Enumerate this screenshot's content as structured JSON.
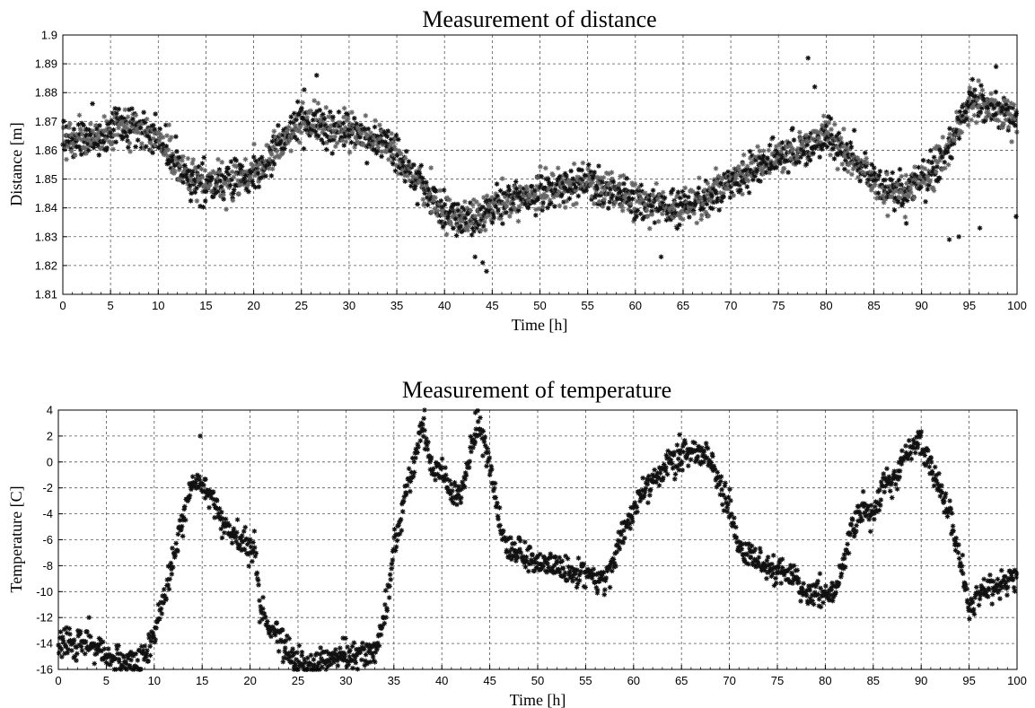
{
  "chart_data": [
    {
      "type": "scatter",
      "title": "Measurement of distance",
      "xlabel": "Time [h]",
      "ylabel": "Distance [m]",
      "xlim": [
        0,
        100
      ],
      "ylim": [
        1.81,
        1.9
      ],
      "xticks": [
        "0",
        "5",
        "10",
        "15",
        "20",
        "25",
        "30",
        "35",
        "40",
        "45",
        "50",
        "55",
        "60",
        "65",
        "70",
        "75",
        "80",
        "85",
        "90",
        "95",
        "100"
      ],
      "yticks": [
        "1.81",
        "1.82",
        "1.83",
        "1.84",
        "1.85",
        "1.86",
        "1.87",
        "1.88",
        "1.89",
        "1.9"
      ],
      "grid": true,
      "marker": "asterisk",
      "colors": [
        "#111111",
        "#666666"
      ],
      "trend": {
        "x": [
          0,
          3,
          6,
          8,
          10,
          12,
          14,
          17,
          20,
          22,
          25,
          28,
          31,
          34,
          37,
          40,
          43,
          45,
          48,
          52,
          55,
          58,
          61,
          64,
          67,
          70,
          73,
          75,
          78,
          80,
          83,
          86,
          88,
          91,
          93,
          95,
          97,
          100
        ],
        "y": [
          1.863,
          1.864,
          1.868,
          1.868,
          1.864,
          1.855,
          1.848,
          1.849,
          1.852,
          1.86,
          1.87,
          1.868,
          1.866,
          1.862,
          1.851,
          1.838,
          1.835,
          1.84,
          1.844,
          1.847,
          1.849,
          1.845,
          1.842,
          1.84,
          1.842,
          1.848,
          1.855,
          1.858,
          1.861,
          1.865,
          1.856,
          1.846,
          1.846,
          1.852,
          1.862,
          1.878,
          1.875,
          1.871
        ]
      },
      "outliers": {
        "x": [
          25.3,
          26.6,
          44.0,
          44.4,
          43.2,
          78.1,
          92.9,
          96.1,
          97.8,
          78.8,
          62.7,
          93.9,
          99.9
        ],
        "y": [
          1.881,
          1.886,
          1.821,
          1.818,
          1.823,
          1.892,
          1.829,
          1.833,
          1.889,
          1.882,
          1.823,
          1.83,
          1.837
        ]
      }
    },
    {
      "type": "scatter",
      "title": "Measurement of temperature",
      "xlabel": "Time [h]",
      "ylabel": "Temperature [C]",
      "xlim": [
        0,
        100
      ],
      "ylim": [
        -16,
        4
      ],
      "xticks": [
        "0",
        "5",
        "10",
        "15",
        "20",
        "25",
        "30",
        "35",
        "40",
        "45",
        "50",
        "55",
        "60",
        "65",
        "70",
        "75",
        "80",
        "85",
        "90",
        "95",
        "100"
      ],
      "yticks": [
        "-16",
        "-14",
        "-12",
        "-10",
        "-8",
        "-6",
        "-4",
        "-2",
        "0",
        "2",
        "4"
      ],
      "grid": true,
      "marker": "asterisk",
      "colors": [
        "#111111"
      ],
      "trend": {
        "x": [
          0,
          3,
          5,
          8,
          9,
          10,
          11,
          12,
          13,
          14,
          15,
          16,
          17,
          18,
          19,
          20,
          20.6,
          21,
          23,
          25,
          27,
          30,
          33,
          34,
          35,
          36,
          37,
          38,
          39,
          40,
          41,
          42,
          43,
          44,
          45,
          46,
          47,
          50,
          53,
          56,
          57,
          58,
          60,
          62,
          64,
          66,
          68,
          70,
          71,
          72,
          73,
          75,
          77,
          78,
          79,
          80,
          81,
          82,
          83,
          84,
          85,
          86,
          87,
          88,
          89,
          90,
          91,
          92,
          93,
          94,
          95,
          96,
          98,
          100
        ],
        "y": [
          -14,
          -14,
          -15,
          -15.5,
          -15,
          -13.5,
          -10.5,
          -7.5,
          -4.5,
          -1.5,
          -1.5,
          -3,
          -4.5,
          -5.5,
          -6,
          -6.5,
          -6.5,
          -11.5,
          -13.5,
          -15.5,
          -15.5,
          -15,
          -14.8,
          -12,
          -7,
          -3,
          -0.5,
          3.0,
          -0.5,
          -0.5,
          -2.5,
          -2.5,
          1,
          3.0,
          -0.5,
          -4.5,
          -7,
          -7.8,
          -8.5,
          -8.8,
          -9.2,
          -7.5,
          -3.5,
          -1.5,
          0,
          1,
          0,
          -3.5,
          -6.8,
          -7,
          -7.5,
          -8.5,
          -9,
          -10.5,
          -10,
          -10.5,
          -10,
          -7.5,
          -4.5,
          -3.5,
          -4,
          -2,
          -1.5,
          0,
          1,
          1.5,
          0,
          -2,
          -4,
          -7.5,
          -11.5,
          -10,
          -9.5,
          -9
        ]
      },
      "outliers": {
        "x": [
          14.8,
          38.2,
          43.5,
          3.2,
          89.7,
          64.8,
          24.6,
          7.5
        ],
        "y": [
          2.0,
          4.0,
          3.8,
          -12.0,
          2.3,
          2.1,
          -15.8,
          -15.9
        ]
      }
    }
  ]
}
